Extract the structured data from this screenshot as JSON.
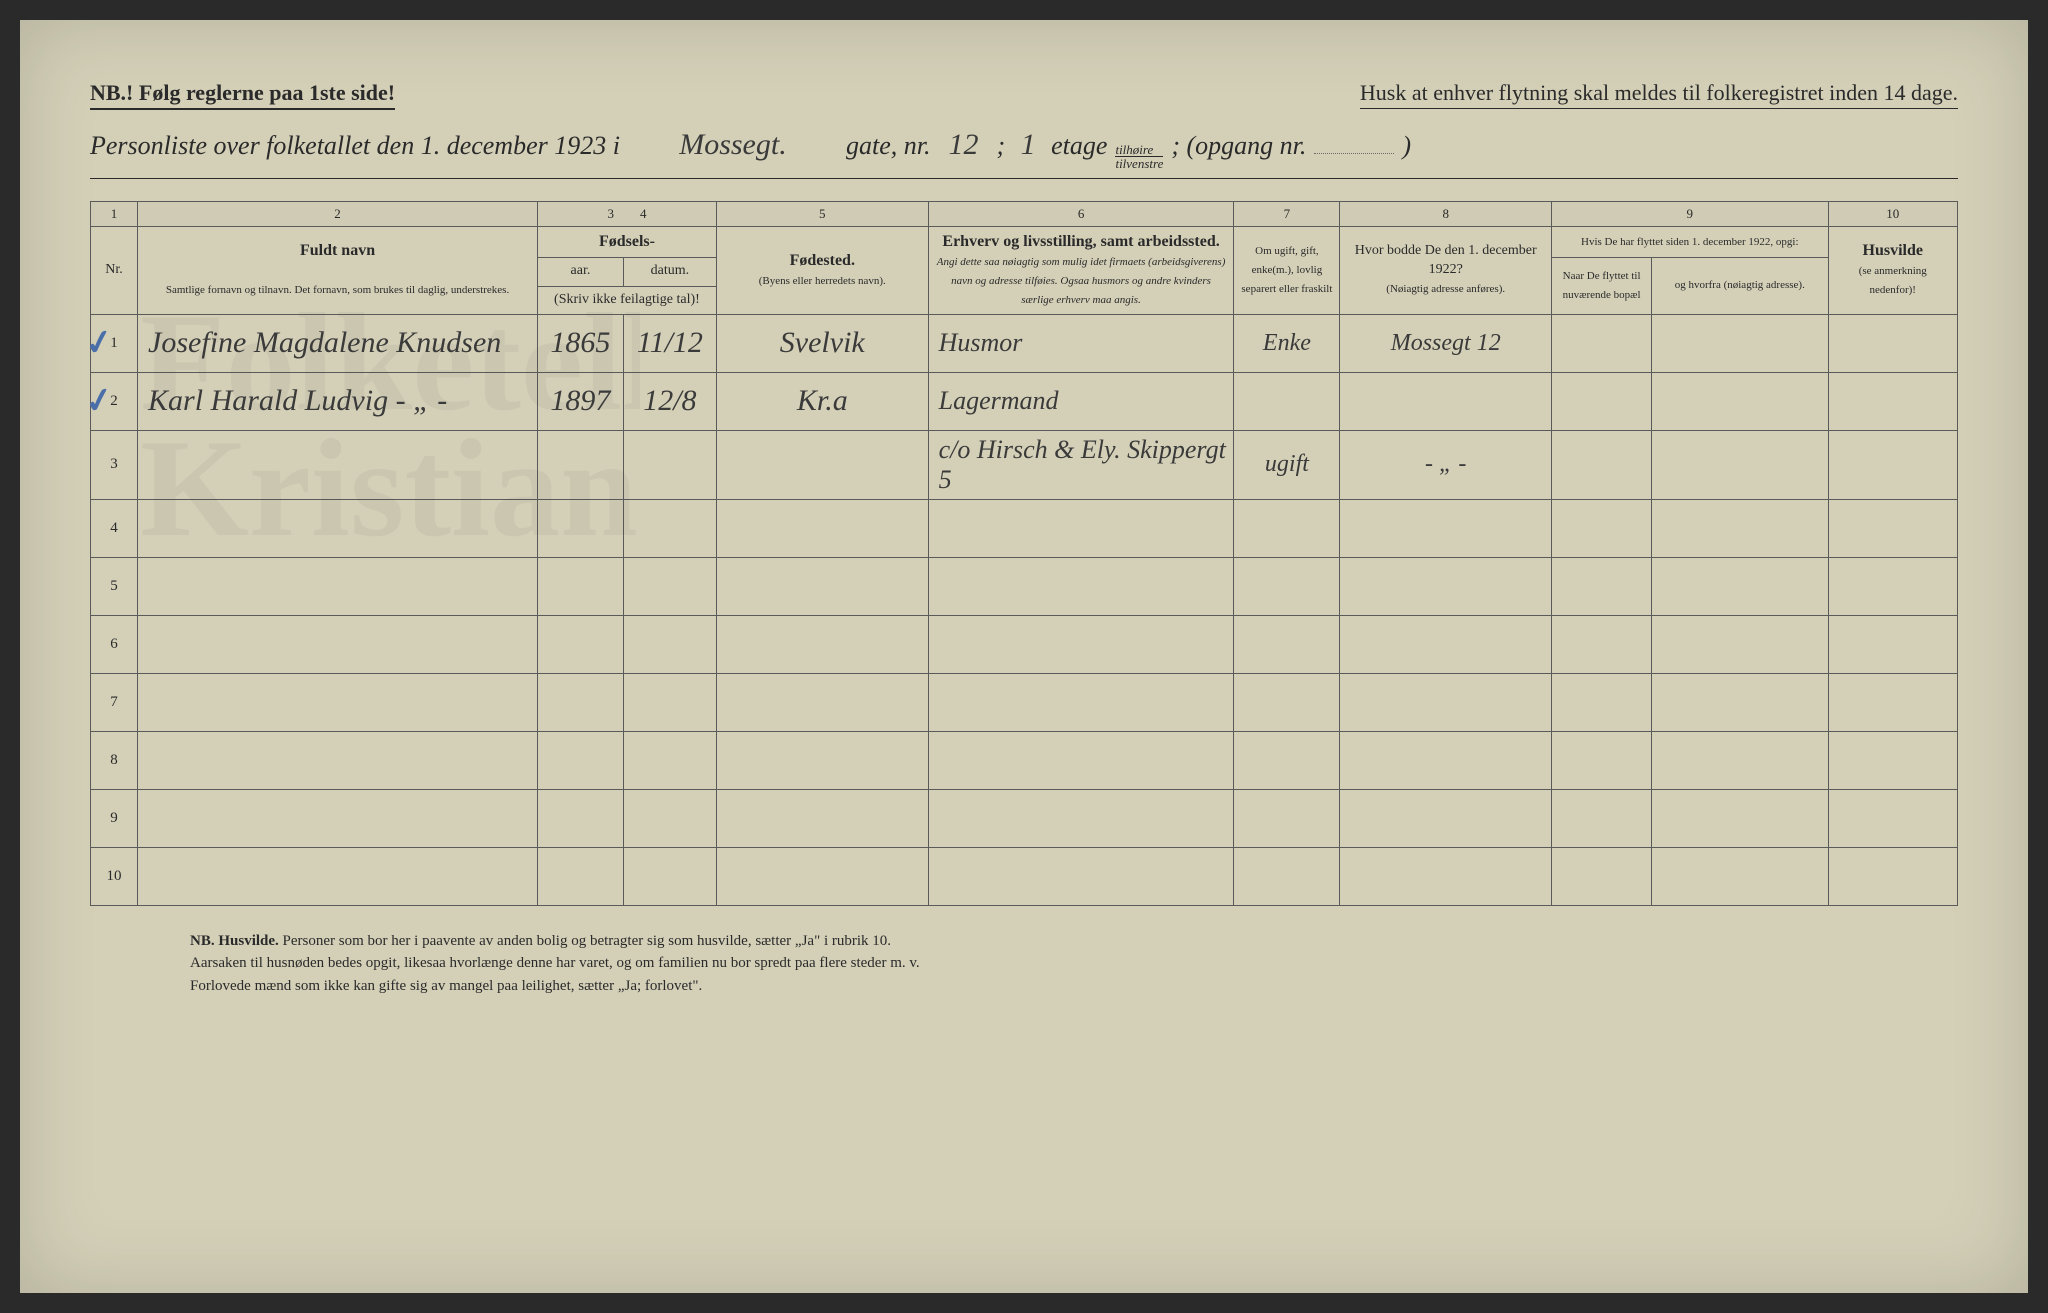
{
  "header": {
    "nb_left": "NB.! Følg reglerne paa 1ste side!",
    "nb_right": "Husk at enhver flytning skal meldes til folkeregistret inden 14 dage."
  },
  "title": {
    "prefix": "Personliste over folketallet den 1. december 1923 i",
    "street_hand": "Mossegt.",
    "gate_label": "gate, nr.",
    "gate_nr": "12",
    "sep": "; ",
    "etage_nr": "1",
    "etage_label": "etage",
    "side_top": "tilhøire",
    "side_bot": "tilvenstre",
    "opgang_label": "; (opgang nr.",
    "opgang_nr": "",
    "close": ")"
  },
  "columns": {
    "nums": [
      "1",
      "2",
      "3",
      "4",
      "5",
      "6",
      "7",
      "8",
      "9",
      "10"
    ],
    "h1": "Nr.",
    "h2_title": "Fuldt navn",
    "h2_sub": "Samtlige fornavn og tilnavn. Det fornavn, som brukes til daglig, understrekes.",
    "h34_title": "Fødsels-",
    "h3": "aar.",
    "h4": "datum.",
    "h34_sub": "(Skriv ikke feilagtige tal)!",
    "h5_title": "Fødested.",
    "h5_sub": "(Byens eller herredets navn).",
    "h6_title": "Erhverv og livsstilling, samt arbeidssted.",
    "h6_sub": "Angi dette saa nøiagtig som mulig idet firmaets (arbeidsgiverens) navn og adresse tilføies. Ogsaa husmors og andre kvinders særlige erhverv maa angis.",
    "h7": "Om ugift, gift, enke(m.), lovlig separert eller fraskilt",
    "h8_title": "Hvor bodde De den 1. december 1922?",
    "h8_sub": "(Nøiagtig adresse anføres).",
    "h9_title": "Hvis De har flyttet siden 1. december 1922, opgi:",
    "h9a": "Naar De flyttet til nuværende bopæl",
    "h9b": "og hvorfra (nøiagtig adresse).",
    "h10_title": "Husvilde",
    "h10_sub": "(se anmerkning nedenfor)!"
  },
  "rows": [
    {
      "n": "1",
      "tick": true,
      "name": "Josefine Magdalene Knudsen",
      "year": "1865",
      "date": "11/12",
      "birthplace": "Svelvik",
      "occupation": "Husmor",
      "marital": "Enke",
      "addr1922": "Mossegt 12",
      "moved_when": "",
      "moved_from": "",
      "husvilde": ""
    },
    {
      "n": "2",
      "tick": true,
      "name": "Karl Harald Ludvig   ‑ „ ‑",
      "year": "1897",
      "date": "12/8",
      "birthplace": "Kr.a",
      "occupation": "Lagermand",
      "marital": "",
      "addr1922": "",
      "moved_when": "",
      "moved_from": "",
      "husvilde": ""
    },
    {
      "n": "3",
      "tick": false,
      "name": "",
      "year": "",
      "date": "",
      "birthplace": "",
      "occupation": "c/o Hirsch & Ely. Skippergt 5",
      "marital": "ugift",
      "addr1922": "‑ „ ‑",
      "moved_when": "",
      "moved_from": "",
      "husvilde": ""
    },
    {
      "n": "4",
      "tick": false,
      "name": "",
      "year": "",
      "date": "",
      "birthplace": "",
      "occupation": "",
      "marital": "",
      "addr1922": "",
      "moved_when": "",
      "moved_from": "",
      "husvilde": ""
    },
    {
      "n": "5",
      "tick": false,
      "name": "",
      "year": "",
      "date": "",
      "birthplace": "",
      "occupation": "",
      "marital": "",
      "addr1922": "",
      "moved_when": "",
      "moved_from": "",
      "husvilde": ""
    },
    {
      "n": "6",
      "tick": false,
      "name": "",
      "year": "",
      "date": "",
      "birthplace": "",
      "occupation": "",
      "marital": "",
      "addr1922": "",
      "moved_when": "",
      "moved_from": "",
      "husvilde": ""
    },
    {
      "n": "7",
      "tick": false,
      "name": "",
      "year": "",
      "date": "",
      "birthplace": "",
      "occupation": "",
      "marital": "",
      "addr1922": "",
      "moved_when": "",
      "moved_from": "",
      "husvilde": ""
    },
    {
      "n": "8",
      "tick": false,
      "name": "",
      "year": "",
      "date": "",
      "birthplace": "",
      "occupation": "",
      "marital": "",
      "addr1922": "",
      "moved_when": "",
      "moved_from": "",
      "husvilde": ""
    },
    {
      "n": "9",
      "tick": false,
      "name": "",
      "year": "",
      "date": "",
      "birthplace": "",
      "occupation": "",
      "marital": "",
      "addr1922": "",
      "moved_when": "",
      "moved_from": "",
      "husvilde": ""
    },
    {
      "n": "10",
      "tick": false,
      "name": "",
      "year": "",
      "date": "",
      "birthplace": "",
      "occupation": "",
      "marital": "",
      "addr1922": "",
      "moved_when": "",
      "moved_from": "",
      "husvilde": ""
    }
  ],
  "footer": {
    "line1_a": "NB.",
    "line1_b": "Husvilde.",
    "line1_c": "Personer som bor her i paavente av anden bolig og betragter sig som husvilde, sætter „Ja\" i rubrik 10.",
    "line2": "Aarsaken til husnøden bedes opgit, likesaa hvorlænge denne har varet, og om familien nu bor spredt paa flere steder m. v.",
    "line3": "Forlovede mænd som ikke kan gifte sig av mangel paa leilighet, sætter „Ja; forlovet\"."
  },
  "style": {
    "paper_bg": "#d4d0b8",
    "ink": "#2a2a2a",
    "hand_ink": "#3a3a3a",
    "tick_color": "#4a6fa8",
    "border": "#5a5a5a"
  }
}
